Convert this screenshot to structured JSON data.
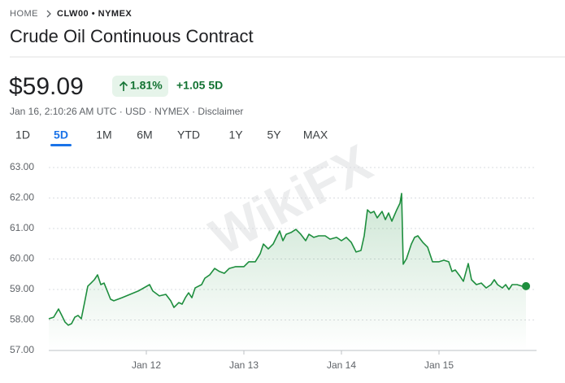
{
  "breadcrumb": [
    "HOME",
    "CLW00 • NYMEX"
  ],
  "title": "Crude Oil Continuous Contract",
  "price": "$59.09",
  "change_percent": "1.81%",
  "change_abs": "+1.05 5D",
  "info": "Jan 16, 2:10:26 AM UTC · USD · NYMEX · Disclaimer",
  "tabs": [
    "1D",
    "5D",
    "1M",
    "6M",
    "YTD",
    "1Y",
    "5Y",
    "MAX"
  ],
  "selected_tab": 1,
  "watermark": "WikiFX",
  "chart_data": {
    "type": "line",
    "color": "#1e8e3e",
    "grid": true,
    "xlim": [
      11,
      16
    ],
    "xticks": [
      {
        "value": 12,
        "label": "Jan 12"
      },
      {
        "value": 13,
        "label": "Jan 13"
      },
      {
        "value": 14,
        "label": "Jan 14"
      },
      {
        "value": 15,
        "label": "Jan 15"
      }
    ],
    "ylim": [
      57,
      63
    ],
    "yticks": [
      {
        "value": 57,
        "label": "57.00"
      },
      {
        "value": 58,
        "label": "58.00"
      },
      {
        "value": 59,
        "label": "59.00"
      },
      {
        "value": 60,
        "label": "60.00"
      },
      {
        "value": 61,
        "label": "61.00"
      },
      {
        "value": 62,
        "label": "62.00"
      },
      {
        "value": 63,
        "label": "63.00"
      }
    ],
    "x": [
      11,
      11.05,
      11.1,
      11.133,
      11.167,
      11.2,
      11.233,
      11.267,
      11.3,
      11.333,
      11.367,
      11.4,
      11.433,
      11.467,
      11.5,
      11.533,
      11.567,
      11.6,
      11.633,
      11.667,
      11.75,
      11.833,
      11.917,
      12.033,
      12.067,
      12.133,
      12.2,
      12.25,
      12.283,
      12.333,
      12.367,
      12.4,
      12.433,
      12.467,
      12.5,
      12.567,
      12.6,
      12.65,
      12.7,
      12.75,
      12.8,
      12.85,
      12.917,
      13,
      13.05,
      13.117,
      13.167,
      13.2,
      13.25,
      13.3,
      13.333,
      13.367,
      13.4,
      13.433,
      13.483,
      13.533,
      13.583,
      13.633,
      13.667,
      13.717,
      13.767,
      13.833,
      13.883,
      13.95,
      14,
      14.05,
      14.1,
      14.15,
      14.2,
      14.233,
      14.267,
      14.3,
      14.333,
      14.367,
      14.417,
      14.45,
      14.483,
      14.517,
      14.567,
      14.6,
      14.617,
      14.633,
      14.667,
      14.717,
      14.75,
      14.783,
      14.833,
      14.883,
      14.933,
      15,
      15.05,
      15.1,
      15.133,
      15.167,
      15.217,
      15.25,
      15.3,
      15.333,
      15.383,
      15.433,
      15.483,
      15.533,
      15.567,
      15.6,
      15.65,
      15.683,
      15.717,
      15.75,
      15.8,
      15.85,
      15.892
    ],
    "values": [
      58.04,
      58.09,
      58.36,
      58.15,
      57.93,
      57.83,
      57.88,
      58.09,
      58.15,
      58.04,
      58.57,
      59.11,
      59.21,
      59.32,
      59.48,
      59.16,
      59.21,
      58.95,
      58.68,
      58.63,
      58.73,
      58.84,
      58.95,
      59.16,
      58.95,
      58.79,
      58.84,
      58.63,
      58.41,
      58.57,
      58.52,
      58.73,
      58.89,
      58.73,
      59.05,
      59.16,
      59.37,
      59.48,
      59.69,
      59.59,
      59.53,
      59.69,
      59.75,
      59.75,
      59.91,
      59.91,
      60.17,
      60.49,
      60.33,
      60.49,
      60.71,
      60.92,
      60.6,
      60.81,
      60.87,
      60.97,
      60.81,
      60.6,
      60.81,
      60.71,
      60.76,
      60.76,
      60.65,
      60.71,
      60.6,
      60.71,
      60.55,
      60.23,
      60.28,
      60.76,
      61.61,
      61.51,
      61.56,
      61.35,
      61.56,
      61.29,
      61.51,
      61.24,
      61.61,
      61.83,
      62.15,
      59.83,
      60.01,
      60.49,
      60.71,
      60.76,
      60.55,
      60.39,
      59.91,
      59.91,
      59.96,
      59.91,
      59.59,
      59.64,
      59.43,
      59.27,
      59.85,
      59.32,
      59.16,
      59.21,
      59.05,
      59.16,
      59.32,
      59.16,
      59.05,
      59.16,
      59.0,
      59.16,
      59.16,
      59.11,
      59.11
    ]
  }
}
